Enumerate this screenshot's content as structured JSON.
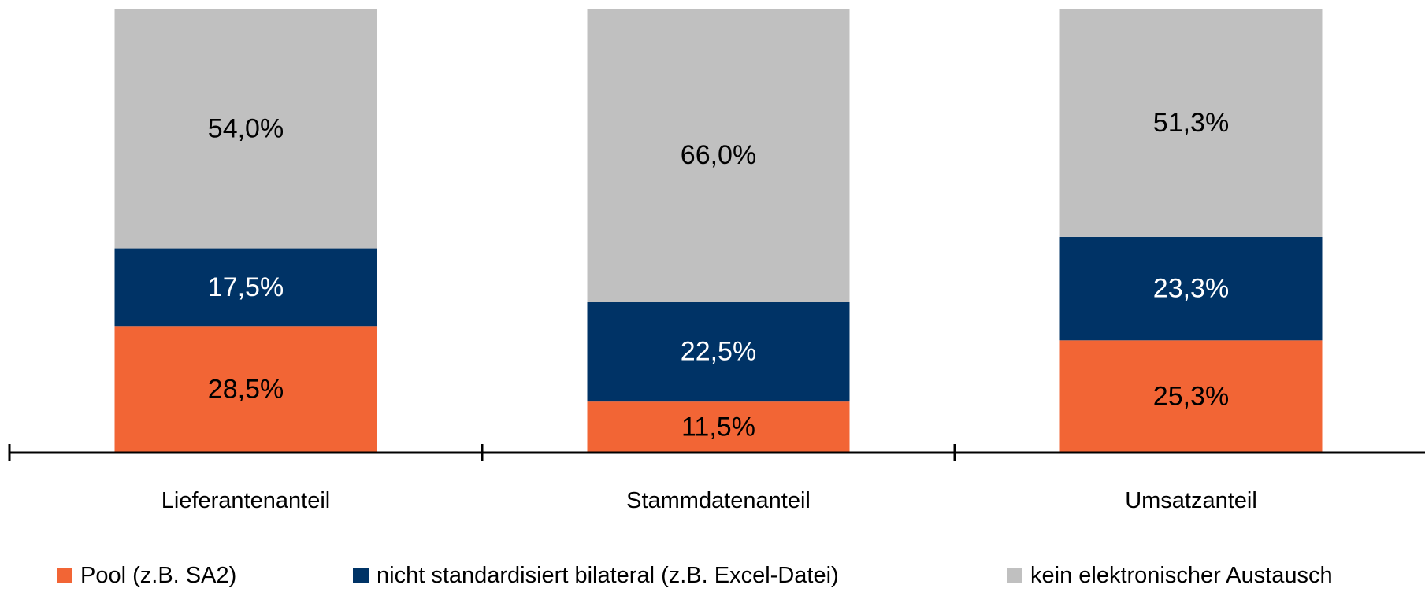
{
  "chart_data": {
    "type": "bar",
    "stacked": true,
    "categories": [
      "Lieferantenanteil",
      "Stammdatenanteil",
      "Umsatzanteil"
    ],
    "series": [
      {
        "name": "Pool (z.B. SA2)",
        "color": "#F26535",
        "label_color": "#000000",
        "values": [
          28.5,
          11.5,
          25.3
        ],
        "labels": [
          "28,5%",
          "11,5%",
          "25,3%"
        ]
      },
      {
        "name": "nicht standardisiert bilateral (z.B. Excel-Datei)",
        "color": "#003366",
        "label_color": "#ffffff",
        "values": [
          17.5,
          22.5,
          23.3
        ],
        "labels": [
          "17,5%",
          "22,5%",
          "23,3%"
        ]
      },
      {
        "name": "kein elektronischer Austausch",
        "color": "#C0C0C0",
        "label_color": "#000000",
        "values": [
          54.0,
          66.0,
          51.3
        ],
        "labels": [
          "54,0%",
          "66,0%",
          "51,3%"
        ]
      }
    ],
    "ylim": [
      0,
      100
    ],
    "grid": false,
    "legend_position": "bottom"
  }
}
